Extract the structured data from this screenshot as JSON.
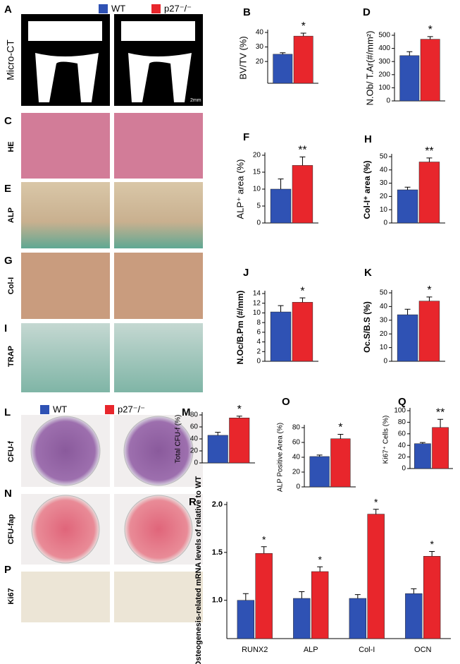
{
  "figure": {
    "legend_top": [
      {
        "name": "WT",
        "color": "#2f52b4"
      },
      {
        "name": "p27⁻/⁻",
        "color": "#e8262c"
      }
    ],
    "legend_colony": [
      {
        "name": "WT",
        "color": "#2f52b4"
      },
      {
        "name": "p27⁻/⁻",
        "color": "#e8262c"
      }
    ],
    "image_panels": [
      {
        "letter": "A",
        "label": "Micro-CT",
        "scale": "2mm"
      },
      {
        "letter": "C",
        "label": "HE"
      },
      {
        "letter": "E",
        "label": "ALP"
      },
      {
        "letter": "G",
        "label": "Col-I"
      },
      {
        "letter": "I",
        "label": "TRAP"
      },
      {
        "letter": "L",
        "label": "CFU-f"
      },
      {
        "letter": "N",
        "label": "CFU-fap"
      },
      {
        "letter": "P",
        "label": "Ki67"
      }
    ]
  },
  "chart_data": [
    {
      "type": "bar",
      "letter": "B",
      "y_label": "BV/TV (%)",
      "ylim": [
        5,
        40
      ],
      "yticks": [
        20,
        30,
        40
      ],
      "series": [
        {
          "color": "#2f52b4",
          "values": [
            25
          ],
          "errors": [
            1
          ]
        },
        {
          "color": "#e8262c",
          "values": [
            37.5
          ],
          "errors": [
            2
          ]
        }
      ],
      "significance": [
        "*"
      ]
    },
    {
      "type": "bar",
      "letter": "D",
      "y_label": "N.Ob/ T.Ar(#/mm²)",
      "ylim": [
        0,
        500
      ],
      "yticks": [
        0,
        100,
        200,
        300,
        400,
        500
      ],
      "series": [
        {
          "color": "#2f52b4",
          "values": [
            345
          ],
          "errors": [
            30
          ]
        },
        {
          "color": "#e8262c",
          "values": [
            470
          ],
          "errors": [
            20
          ]
        }
      ],
      "significance": [
        "*"
      ]
    },
    {
      "type": "bar",
      "letter": "F",
      "y_label": "ALP⁺ area (%)",
      "ylim": [
        0,
        20
      ],
      "yticks": [
        0,
        5,
        10,
        15,
        20
      ],
      "series": [
        {
          "color": "#2f52b4",
          "values": [
            10
          ],
          "errors": [
            3
          ]
        },
        {
          "color": "#e8262c",
          "values": [
            17
          ],
          "errors": [
            2.5
          ]
        }
      ],
      "significance": [
        "**"
      ]
    },
    {
      "type": "bar",
      "letter": "H",
      "y_label": "Col-I⁺ area (%)",
      "ylim": [
        0,
        50
      ],
      "yticks": [
        0,
        10,
        20,
        30,
        40,
        50
      ],
      "series": [
        {
          "color": "#2f52b4",
          "values": [
            25
          ],
          "errors": [
            2
          ]
        },
        {
          "color": "#e8262c",
          "values": [
            46
          ],
          "errors": [
            3
          ]
        }
      ],
      "significance": [
        "**"
      ]
    },
    {
      "type": "bar",
      "letter": "J",
      "y_label": "N.Oc/B.Pm (#/mm)",
      "ylim": [
        0,
        14
      ],
      "yticks": [
        0,
        2,
        4,
        6,
        8,
        10,
        12,
        14
      ],
      "series": [
        {
          "color": "#2f52b4",
          "values": [
            10.2
          ],
          "errors": [
            1.3
          ]
        },
        {
          "color": "#e8262c",
          "values": [
            12.2
          ],
          "errors": [
            0.9
          ]
        }
      ],
      "significance": [
        "*"
      ]
    },
    {
      "type": "bar",
      "letter": "K",
      "y_label": "Oc.S/B.S (%)",
      "ylim": [
        0,
        50
      ],
      "yticks": [
        0,
        10,
        20,
        30,
        40,
        50
      ],
      "series": [
        {
          "color": "#2f52b4",
          "values": [
            34
          ],
          "errors": [
            4
          ]
        },
        {
          "color": "#e8262c",
          "values": [
            44
          ],
          "errors": [
            3
          ]
        }
      ],
      "significance": [
        "*"
      ]
    },
    {
      "type": "bar",
      "letter": "M",
      "y_label": "Total CFU-f (%)",
      "ylim": [
        0,
        80
      ],
      "yticks": [
        0,
        20,
        40,
        60,
        80
      ],
      "series": [
        {
          "color": "#2f52b4",
          "values": [
            46
          ],
          "errors": [
            5
          ]
        },
        {
          "color": "#e8262c",
          "values": [
            75
          ],
          "errors": [
            3
          ]
        }
      ],
      "significance": [
        "*"
      ]
    },
    {
      "type": "bar",
      "letter": "O",
      "y_label": "ALP Positive Area (%)",
      "ylim": [
        0,
        80
      ],
      "yticks": [
        0,
        20,
        40,
        60,
        80
      ],
      "series": [
        {
          "color": "#2f52b4",
          "values": [
            41
          ],
          "errors": [
            2
          ]
        },
        {
          "color": "#e8262c",
          "values": [
            65
          ],
          "errors": [
            6
          ]
        }
      ],
      "significance": [
        "*"
      ]
    },
    {
      "type": "bar",
      "letter": "Q",
      "y_label": "Ki67⁺ Cells (%)",
      "ylim": [
        0,
        100
      ],
      "yticks": [
        0,
        20,
        40,
        60,
        80,
        100
      ],
      "series": [
        {
          "color": "#2f52b4",
          "values": [
            43
          ],
          "errors": [
            2
          ]
        },
        {
          "color": "#e8262c",
          "values": [
            71
          ],
          "errors": [
            14
          ]
        }
      ],
      "significance": [
        "**"
      ]
    },
    {
      "type": "bar",
      "letter": "R",
      "y_label": "Osteogenesis-related mRNA levels of relative to WT",
      "ylim": [
        0.6,
        2.0
      ],
      "yticks": [
        {
          "value": 1,
          "label": "1.0"
        },
        1.5,
        {
          "value": 2,
          "label": "2.0"
        }
      ],
      "categories": [
        "RUNX2",
        "ALP",
        "Col-I",
        "OCN"
      ],
      "series": [
        {
          "color": "#2f52b4",
          "values": [
            1.0,
            1.02,
            1.02,
            1.07
          ],
          "errors": [
            0.07,
            0.07,
            0.04,
            0.05
          ]
        },
        {
          "color": "#e8262c",
          "values": [
            1.49,
            1.3,
            1.9,
            1.46
          ],
          "errors": [
            0.07,
            0.05,
            0.05,
            0.05
          ]
        }
      ],
      "significance": [
        "*",
        "*",
        "*",
        "*"
      ]
    }
  ]
}
